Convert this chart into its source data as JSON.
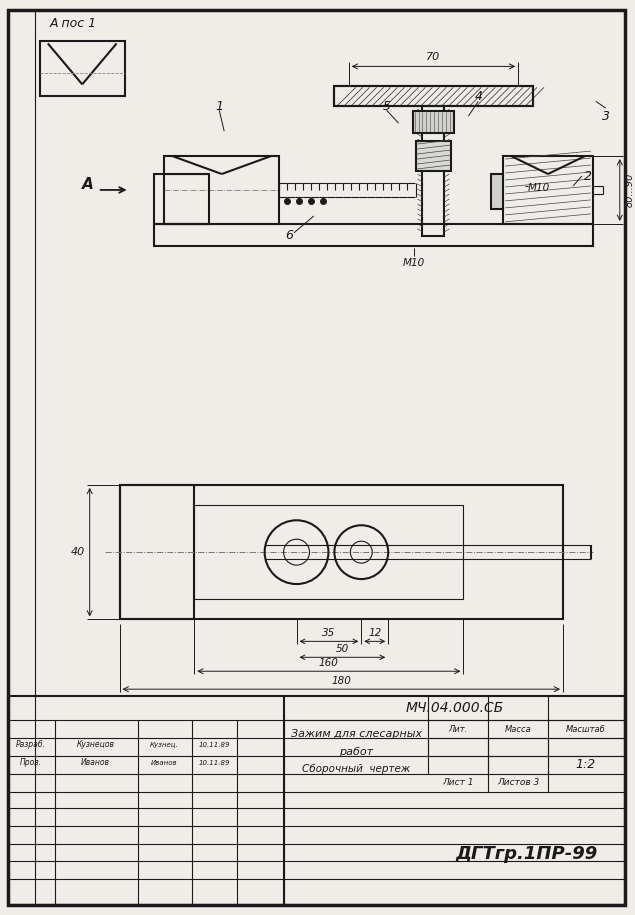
{
  "title": "МЧ.04.000.СБ",
  "drawing_title_line1": "Зажим для слесарных",
  "drawing_title_line2": "работ",
  "drawing_title_line3": "Сборочный  чертеж",
  "scale": "1:2",
  "sheet": "Лист 1",
  "sheets": "Листов 3",
  "group": "ДГТгр.1ПР-99",
  "razrab": "Разраб.",
  "prov": "Пров.",
  "name1": "Кузнецов",
  "name2": "Иванов",
  "sign1": "Кузнец.",
  "sign2": "Иванов",
  "date1": "10.11.89",
  "date2": "10.11.89",
  "lit": "Лит.",
  "massa": "Масса",
  "masshtab": "Масштаб",
  "a_poz1": "А пос 1",
  "label_a": "А",
  "background": "#f0ede8",
  "line_color": "#1a1a1a",
  "hatch_color": "#444444"
}
